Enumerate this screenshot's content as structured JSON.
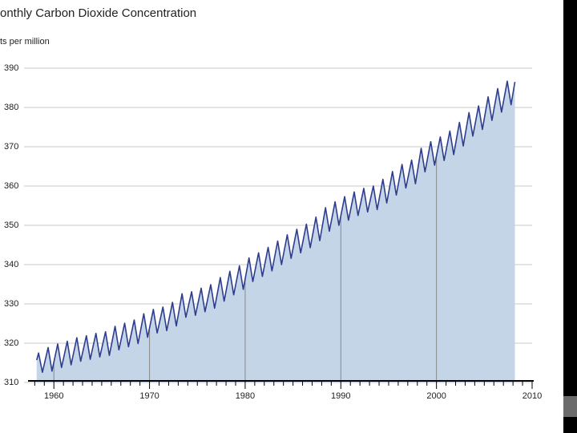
{
  "chart_data": {
    "type": "area",
    "title": "onthly Carbon Dioxide Concentration",
    "subtitle": "ts per million",
    "x": [
      1958.2,
      1958.4,
      1958.8,
      1959.4,
      1959.8,
      1960.4,
      1960.8,
      1961.4,
      1961.8,
      1962.4,
      1962.8,
      1963.4,
      1963.8,
      1964.4,
      1964.8,
      1965.4,
      1965.8,
      1966.4,
      1966.8,
      1967.4,
      1967.8,
      1968.4,
      1968.8,
      1969.4,
      1969.8,
      1970.4,
      1970.8,
      1971.4,
      1971.8,
      1972.4,
      1972.8,
      1973.4,
      1973.8,
      1974.4,
      1974.8,
      1975.4,
      1975.8,
      1976.4,
      1976.8,
      1977.4,
      1977.8,
      1978.4,
      1978.8,
      1979.4,
      1979.8,
      1980.4,
      1980.8,
      1981.4,
      1981.8,
      1982.4,
      1982.8,
      1983.4,
      1983.8,
      1984.4,
      1984.8,
      1985.4,
      1985.8,
      1986.4,
      1986.8,
      1987.4,
      1987.8,
      1988.4,
      1988.8,
      1989.4,
      1989.8,
      1990.4,
      1990.8,
      1991.4,
      1991.8,
      1992.4,
      1992.8,
      1993.4,
      1993.8,
      1994.4,
      1994.8,
      1995.4,
      1995.8,
      1996.4,
      1996.8,
      1997.4,
      1997.8,
      1998.4,
      1998.8,
      1999.4,
      1999.8,
      2000.4,
      2000.8,
      2001.4,
      2001.8,
      2002.4,
      2002.8,
      2003.4,
      2003.8,
      2004.4,
      2004.8,
      2005.4,
      2005.8,
      2006.4,
      2006.8,
      2007.4,
      2007.8,
      2008.2
    ],
    "values": [
      315.7,
      317.5,
      312.6,
      318.9,
      312.9,
      319.8,
      313.8,
      320.5,
      314.5,
      321.4,
      315.4,
      321.9,
      315.9,
      322.5,
      316.5,
      322.9,
      316.9,
      324.3,
      318.3,
      325.1,
      319.1,
      325.9,
      319.9,
      327.5,
      321.5,
      328.6,
      322.6,
      329.2,
      323.2,
      330.4,
      324.4,
      332.6,
      326.6,
      333.1,
      327.1,
      334.0,
      328.0,
      334.9,
      328.9,
      336.7,
      330.7,
      338.3,
      332.3,
      339.7,
      333.7,
      341.7,
      335.7,
      343.0,
      337.0,
      344.4,
      338.4,
      346.0,
      340.0,
      347.6,
      341.6,
      349.0,
      343.0,
      350.3,
      344.3,
      352.1,
      346.1,
      354.5,
      348.5,
      356.0,
      350.0,
      357.3,
      351.3,
      358.5,
      352.5,
      359.4,
      353.4,
      360.0,
      354.0,
      361.7,
      355.7,
      363.7,
      357.7,
      365.5,
      359.5,
      366.6,
      360.6,
      369.6,
      363.6,
      371.3,
      365.3,
      372.5,
      366.5,
      374.0,
      368.0,
      376.2,
      370.2,
      378.7,
      372.7,
      380.4,
      374.4,
      382.7,
      376.7,
      384.8,
      378.8,
      386.7,
      380.7,
      386.5
    ],
    "color": "#2e3d8c",
    "fill_color": "#c5d5e8",
    "xlim": [
      1957.3,
      2010
    ],
    "xticks": [
      1960,
      1970,
      1980,
      1990,
      2000,
      2010
    ],
    "x_minor_ticks": [
      1958,
      1959,
      1961,
      1962,
      1963,
      1964,
      1965,
      1966,
      1967,
      1968,
      1969,
      1971,
      1972,
      1973,
      1974,
      1975,
      1976,
      1977,
      1978,
      1979,
      1981,
      1982,
      1983,
      1984,
      1985,
      1986,
      1987,
      1988,
      1989,
      1991,
      1992,
      1993,
      1994,
      1995,
      1996,
      1997,
      1998,
      1999,
      2001,
      2002,
      2003,
      2004,
      2005,
      2006,
      2007,
      2008,
      2009
    ],
    "ylim": [
      310,
      390
    ],
    "yticks": [
      310,
      320,
      330,
      340,
      350,
      360,
      370,
      380,
      390
    ],
    "grid": true
  }
}
